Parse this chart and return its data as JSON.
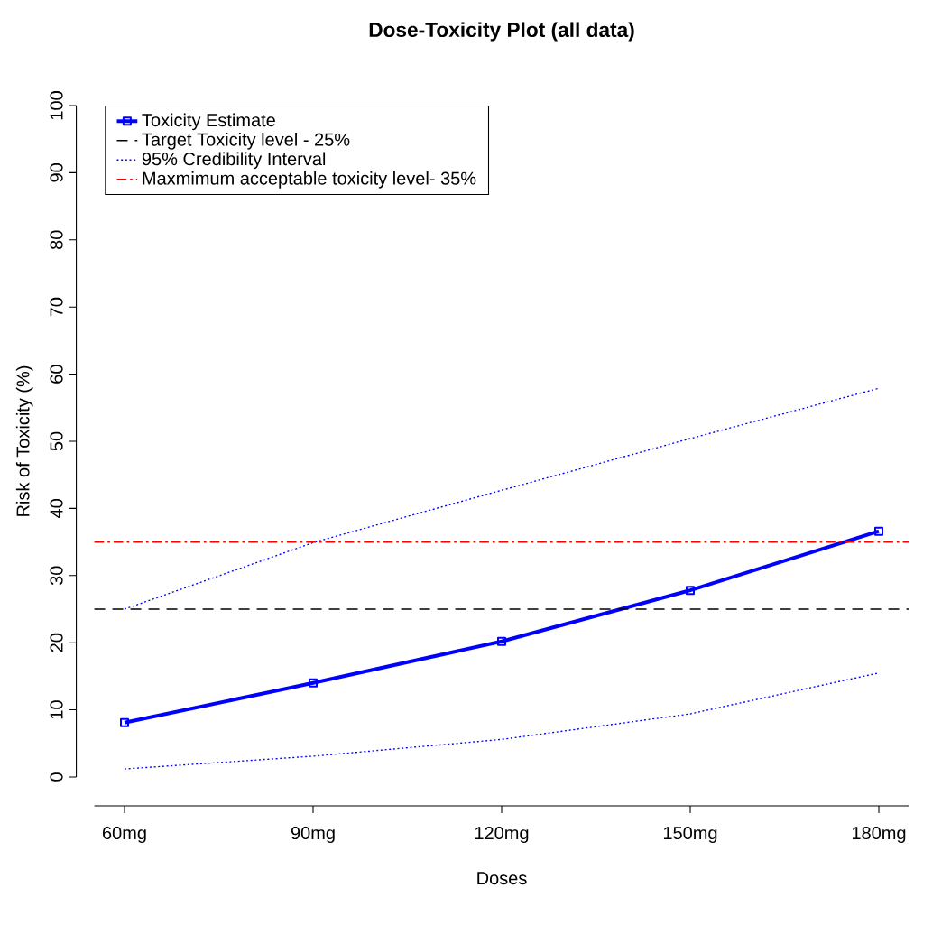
{
  "chart_data": {
    "type": "line",
    "title": "Dose-Toxicity Plot (all data)",
    "xlabel": "Doses",
    "ylabel": "Risk of Toxicity (%)",
    "categories": [
      "60mg",
      "90mg",
      "120mg",
      "150mg",
      "180mg"
    ],
    "ylim": [
      0,
      100
    ],
    "yticks": [
      0,
      10,
      20,
      30,
      40,
      50,
      60,
      70,
      80,
      90,
      100
    ],
    "series": [
      {
        "name": "Toxicity Estimate",
        "color": "#0000ff",
        "line_style": "solid",
        "marker": "square",
        "values": [
          8.1,
          14.0,
          20.2,
          27.8,
          36.6
        ]
      },
      {
        "name": "95% Credibility Interval",
        "color": "#0000ff",
        "line_style": "dotted",
        "values": [
          25.0,
          34.9,
          42.7,
          50.4,
          57.9
        ]
      },
      {
        "color": "#0000ff",
        "line_style": "dotted",
        "values": [
          1.2,
          3.1,
          5.6,
          9.4,
          15.5
        ]
      }
    ],
    "ref_lines": [
      {
        "axis": "y",
        "value": 25,
        "label": "Target Toxicity level - 25%",
        "color": "#000000",
        "line_style": "dashed"
      },
      {
        "axis": "y",
        "value": 35,
        "label": "Maxmimum acceptable toxicity level- 35%",
        "color": "#ff0000",
        "line_style": "dashdot"
      }
    ],
    "legend": "top left"
  }
}
